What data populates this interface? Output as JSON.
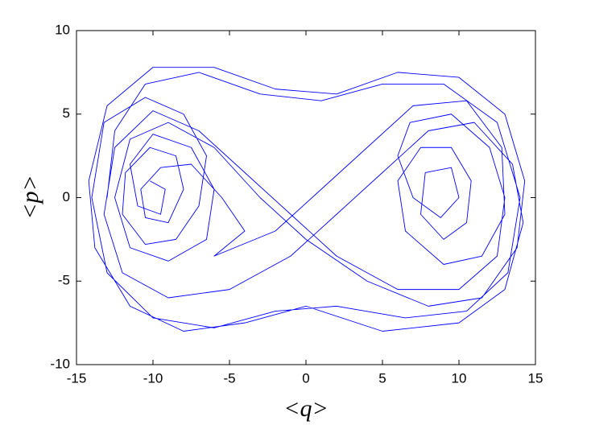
{
  "chart_data": {
    "type": "line",
    "xlabel": "<q>",
    "ylabel": "<p>",
    "xlim": [
      -15,
      15
    ],
    "xticks": [
      -15,
      -10,
      -5,
      0,
      5,
      10,
      15
    ],
    "ylim": [
      -10,
      10
    ],
    "yticks": [
      -10,
      -5,
      0,
      5,
      10
    ],
    "grid": false,
    "x": [
      -13,
      -12.5,
      -10.5,
      -7,
      -3,
      1,
      5,
      9,
      12.5,
      14,
      13.2,
      10.5,
      6.5,
      2,
      -2,
      -6,
      -10,
      -13,
      -14,
      -13.2,
      -10.5,
      -8,
      -6.5,
      -7,
      -8.5,
      -10.5,
      -12,
      -11.8,
      -10.2,
      -8.5,
      -8,
      -9,
      -10.5,
      -10.8,
      -9.5,
      -7.5,
      -5.5,
      -4,
      -6,
      -2,
      1,
      4,
      7,
      10.5,
      12.8,
      13,
      11.5,
      9,
      6.5,
      6,
      7.5,
      9.5,
      10.8,
      10.5,
      9,
      7.5,
      7.8,
      9.5,
      10,
      8.8,
      7,
      6,
      6.8,
      9.5,
      12,
      13,
      12.5,
      10,
      6,
      2,
      -1,
      -4,
      -7,
      -10,
      -12.5,
      -13.2,
      -12,
      -9,
      -5,
      -1,
      2,
      5,
      8,
      11,
      13.5,
      14.2,
      13,
      10,
      5,
      0,
      -4,
      -8,
      -11.5,
      -13.8,
      -14.2,
      -13,
      -10,
      -6,
      -2,
      2,
      6,
      10,
      13,
      14.3,
      13.8,
      11.5,
      8,
      4,
      0,
      -3,
      -6,
      -9,
      -11.5,
      -12.5,
      -11.5,
      -9,
      -6.5,
      -6,
      -7.5,
      -10,
      -11.5,
      -11,
      -9.5,
      -9.2,
      -10.2
    ],
    "series": [
      {
        "color": "#0000ff",
        "values": [
          0,
          4,
          6.8,
          7.5,
          6.2,
          5.8,
          6.8,
          6.8,
          4.5,
          0,
          -4.5,
          -6.8,
          -7.2,
          -6.5,
          -6.8,
          -7.8,
          -7.2,
          -4.5,
          0,
          4.5,
          6,
          5,
          2.5,
          -0.5,
          -2.5,
          -2.8,
          -1,
          1.5,
          3,
          2.5,
          0.5,
          -1.5,
          -1.2,
          0.5,
          1.8,
          2,
          0,
          -2,
          -3.5,
          -2,
          0.5,
          3,
          5.5,
          5.8,
          3,
          -1,
          -3.5,
          -4,
          -2,
          1,
          3,
          3,
          1,
          -1.5,
          -2.5,
          -1,
          1.5,
          1.8,
          0,
          -1.2,
          0,
          2.5,
          4.5,
          5,
          3,
          0,
          -3.5,
          -5.5,
          -5.5,
          -3.5,
          -1,
          1.5,
          4,
          5.2,
          3,
          -1,
          -4.5,
          -6,
          -5.5,
          -3.5,
          -1,
          1.5,
          4,
          4.5,
          2,
          -1.5,
          -5.5,
          -7.5,
          -8,
          -6.5,
          -7.5,
          -8,
          -6.5,
          -3,
          1,
          5.5,
          7.8,
          7.8,
          6.5,
          6.2,
          7.5,
          7.2,
          5,
          1,
          -3,
          -6,
          -6.5,
          -5,
          -2.5,
          0,
          3,
          4.5,
          3.5,
          0,
          -3,
          -3.8,
          -2.5,
          0.5,
          3,
          3.8,
          2,
          -0.5,
          -1,
          0.5,
          1
        ]
      }
    ]
  }
}
